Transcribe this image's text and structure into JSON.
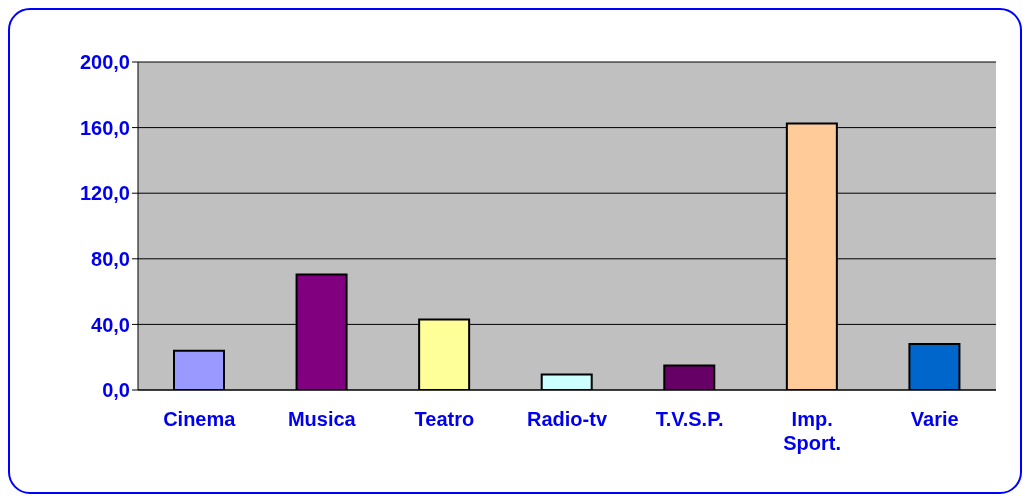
{
  "chart_data": {
    "type": "bar",
    "categories": [
      "Cinema",
      "Musica",
      "Teatro",
      "Radio-tv",
      "T.V.S.P.",
      "Imp. Sport.",
      "Varie"
    ],
    "values": [
      24,
      70.5,
      43,
      9.5,
      15,
      162.5,
      28
    ],
    "colors": [
      "#9999ff",
      "#800080",
      "#ffff99",
      "#ccffff",
      "#660066",
      "#ffcc99",
      "#0066cc"
    ],
    "ylim": [
      0,
      200
    ],
    "yticks": [
      {
        "value": 0,
        "label": "0,0"
      },
      {
        "value": 40,
        "label": "40,0"
      },
      {
        "value": 80,
        "label": "80,0"
      },
      {
        "value": 120,
        "label": "120,0"
      },
      {
        "value": 160,
        "label": "160,0"
      },
      {
        "value": 200,
        "label": "200,0"
      }
    ],
    "grid": "y",
    "legend": false
  }
}
